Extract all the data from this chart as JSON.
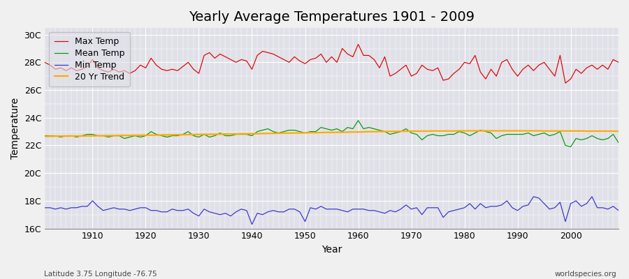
{
  "title": "Yearly Average Temperatures 1901 - 2009",
  "xlabel": "Year",
  "ylabel": "Temperature",
  "years": [
    1901,
    1902,
    1903,
    1904,
    1905,
    1906,
    1907,
    1908,
    1909,
    1910,
    1911,
    1912,
    1913,
    1914,
    1915,
    1916,
    1917,
    1918,
    1919,
    1920,
    1921,
    1922,
    1923,
    1924,
    1925,
    1926,
    1927,
    1928,
    1929,
    1930,
    1931,
    1932,
    1933,
    1934,
    1935,
    1936,
    1937,
    1938,
    1939,
    1940,
    1941,
    1942,
    1943,
    1944,
    1945,
    1946,
    1947,
    1948,
    1949,
    1950,
    1951,
    1952,
    1953,
    1954,
    1955,
    1956,
    1957,
    1958,
    1959,
    1960,
    1961,
    1962,
    1963,
    1964,
    1965,
    1966,
    1967,
    1968,
    1969,
    1970,
    1971,
    1972,
    1973,
    1974,
    1975,
    1976,
    1977,
    1978,
    1979,
    1980,
    1981,
    1982,
    1983,
    1984,
    1985,
    1986,
    1987,
    1988,
    1989,
    1990,
    1991,
    1992,
    1993,
    1994,
    1995,
    1996,
    1997,
    1998,
    1999,
    2000,
    2001,
    2002,
    2003,
    2004,
    2005,
    2006,
    2007,
    2008,
    2009
  ],
  "max_temp": [
    28.0,
    27.8,
    27.5,
    27.6,
    27.4,
    27.6,
    27.4,
    27.5,
    27.7,
    28.2,
    27.6,
    27.4,
    27.3,
    27.5,
    27.3,
    27.4,
    27.2,
    27.4,
    27.8,
    27.6,
    28.3,
    27.8,
    27.5,
    27.4,
    27.5,
    27.4,
    27.7,
    28.0,
    27.5,
    27.2,
    28.5,
    28.7,
    28.3,
    28.6,
    28.4,
    28.2,
    28.0,
    28.2,
    28.1,
    27.5,
    28.5,
    28.8,
    28.7,
    28.6,
    28.4,
    28.2,
    28.0,
    28.4,
    28.1,
    27.9,
    28.2,
    28.3,
    28.6,
    28.0,
    28.4,
    28.0,
    29.0,
    28.6,
    28.4,
    29.3,
    28.5,
    28.5,
    28.2,
    27.6,
    28.4,
    27.0,
    27.2,
    27.5,
    27.8,
    27.0,
    27.2,
    27.8,
    27.5,
    27.4,
    27.6,
    26.7,
    26.8,
    27.2,
    27.5,
    28.0,
    27.9,
    28.5,
    27.3,
    26.8,
    27.5,
    27.0,
    28.0,
    28.2,
    27.5,
    27.0,
    27.5,
    27.8,
    27.4,
    27.8,
    28.0,
    27.5,
    27.0,
    28.5,
    26.5,
    26.8,
    27.5,
    27.2,
    27.6,
    27.8,
    27.5,
    27.8,
    27.5,
    28.2,
    28.0
  ],
  "mean_temp": [
    22.7,
    22.7,
    22.7,
    22.6,
    22.7,
    22.7,
    22.6,
    22.7,
    22.8,
    22.8,
    22.7,
    22.7,
    22.6,
    22.7,
    22.7,
    22.5,
    22.6,
    22.7,
    22.6,
    22.7,
    23.0,
    22.8,
    22.7,
    22.6,
    22.7,
    22.7,
    22.8,
    23.0,
    22.7,
    22.6,
    22.8,
    22.6,
    22.7,
    22.9,
    22.7,
    22.7,
    22.8,
    22.8,
    22.8,
    22.7,
    23.0,
    23.1,
    23.2,
    23.0,
    22.9,
    23.0,
    23.1,
    23.1,
    23.0,
    22.9,
    23.0,
    23.0,
    23.3,
    23.2,
    23.1,
    23.2,
    23.0,
    23.3,
    23.2,
    23.8,
    23.2,
    23.3,
    23.2,
    23.1,
    23.0,
    22.8,
    22.9,
    23.0,
    23.2,
    22.9,
    22.8,
    22.4,
    22.7,
    22.8,
    22.7,
    22.7,
    22.8,
    22.8,
    23.0,
    22.9,
    22.7,
    22.9,
    23.1,
    23.0,
    22.9,
    22.5,
    22.7,
    22.8,
    22.8,
    22.8,
    22.8,
    22.9,
    22.7,
    22.8,
    22.9,
    22.7,
    22.8,
    23.0,
    22.0,
    21.9,
    22.5,
    22.4,
    22.5,
    22.7,
    22.5,
    22.4,
    22.5,
    22.8,
    22.2
  ],
  "min_temp": [
    17.5,
    17.5,
    17.4,
    17.5,
    17.4,
    17.5,
    17.5,
    17.6,
    17.6,
    18.0,
    17.6,
    17.3,
    17.4,
    17.5,
    17.4,
    17.4,
    17.3,
    17.4,
    17.5,
    17.5,
    17.3,
    17.3,
    17.2,
    17.2,
    17.4,
    17.3,
    17.3,
    17.4,
    17.1,
    16.9,
    17.4,
    17.2,
    17.1,
    17.0,
    17.1,
    16.9,
    17.2,
    17.4,
    17.3,
    16.3,
    17.1,
    17.0,
    17.2,
    17.3,
    17.2,
    17.2,
    17.4,
    17.4,
    17.2,
    16.5,
    17.5,
    17.4,
    17.6,
    17.4,
    17.4,
    17.4,
    17.3,
    17.2,
    17.4,
    17.4,
    17.4,
    17.3,
    17.3,
    17.2,
    17.1,
    17.3,
    17.2,
    17.4,
    17.7,
    17.4,
    17.5,
    17.0,
    17.5,
    17.5,
    17.5,
    16.8,
    17.2,
    17.3,
    17.4,
    17.5,
    17.8,
    17.4,
    17.8,
    17.5,
    17.6,
    17.6,
    17.7,
    18.0,
    17.5,
    17.3,
    17.6,
    17.7,
    18.3,
    18.2,
    17.8,
    17.4,
    17.5,
    17.9,
    16.5,
    17.8,
    18.0,
    17.6,
    17.8,
    18.3,
    17.5,
    17.5,
    17.4,
    17.6,
    17.3
  ],
  "trend": [
    22.65,
    22.66,
    22.67,
    22.67,
    22.67,
    22.68,
    22.68,
    22.68,
    22.69,
    22.69,
    22.7,
    22.7,
    22.71,
    22.71,
    22.72,
    22.72,
    22.72,
    22.73,
    22.73,
    22.74,
    22.74,
    22.75,
    22.75,
    22.76,
    22.76,
    22.77,
    22.77,
    22.78,
    22.78,
    22.79,
    22.8,
    22.8,
    22.81,
    22.81,
    22.82,
    22.82,
    22.83,
    22.84,
    22.84,
    22.85,
    22.85,
    22.86,
    22.87,
    22.87,
    22.88,
    22.89,
    22.89,
    22.9,
    22.9,
    22.91,
    22.92,
    22.92,
    22.93,
    22.94,
    22.94,
    22.95,
    22.95,
    22.96,
    22.97,
    22.97,
    22.98,
    22.99,
    22.99,
    23.0,
    23.0,
    23.01,
    23.01,
    23.02,
    23.02,
    23.03,
    23.03,
    23.03,
    23.03,
    23.04,
    23.04,
    23.04,
    23.04,
    23.04,
    23.05,
    23.05,
    23.05,
    23.05,
    23.05,
    23.05,
    23.05,
    23.05,
    23.05,
    23.05,
    23.05,
    23.05,
    23.05,
    23.05,
    23.05,
    23.05,
    23.04,
    23.04,
    23.04,
    23.04,
    23.04,
    23.04,
    23.04,
    23.04,
    23.03,
    23.03,
    23.03,
    23.03,
    23.03,
    23.03,
    23.02
  ],
  "ylim": [
    16.0,
    30.5
  ],
  "yticks": [
    16,
    18,
    20,
    22,
    24,
    26,
    28,
    30
  ],
  "ytick_labels": [
    "16C",
    "18C",
    "20C",
    "22C",
    "24C",
    "26C",
    "28C",
    "30C"
  ],
  "xticks": [
    1910,
    1920,
    1930,
    1940,
    1950,
    1960,
    1970,
    1980,
    1990,
    2000
  ],
  "max_color": "#dd0000",
  "mean_color": "#009900",
  "min_color": "#3333cc",
  "trend_color": "#ffaa00",
  "fig_bg_color": "#f0f0f0",
  "plot_bg_color": "#e0e0e8",
  "grid_color": "#ffffff",
  "title_fontsize": 14,
  "axis_label_fontsize": 10,
  "tick_fontsize": 9,
  "legend_fontsize": 9,
  "bottom_left_text": "Latitude 3.75 Longitude -76.75",
  "bottom_right_text": "worldspecies.org"
}
